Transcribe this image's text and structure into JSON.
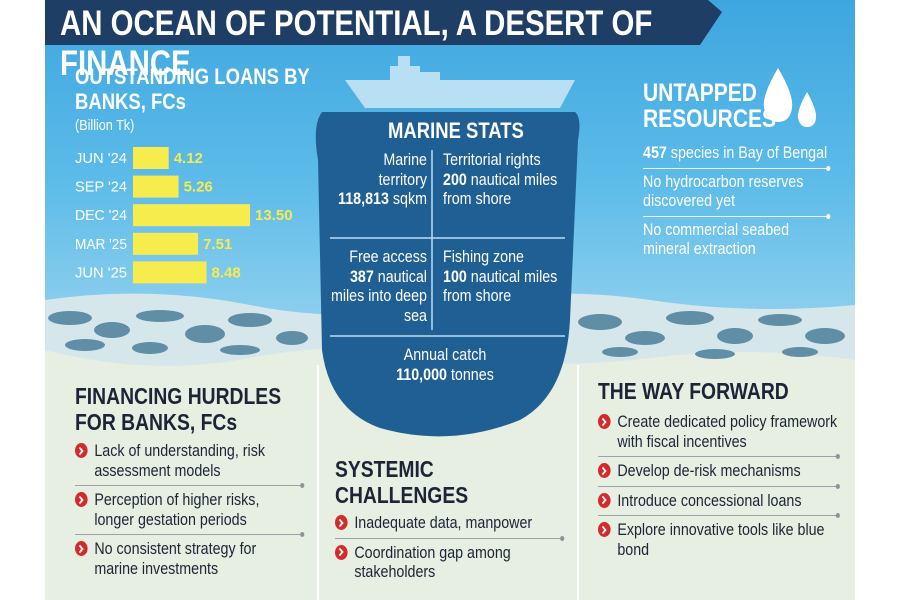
{
  "title": "AN OCEAN OF POTENTIAL, A DESERT OF FINANCE",
  "chart_data": {
    "type": "bar",
    "orientation": "horizontal",
    "title": "OUTSTANDING LOANS BY BANKS, FCs",
    "subtitle": "(Billion Tk)",
    "categories": [
      "JUN '24",
      "SEP '24",
      "DEC '24",
      "MAR '25",
      "JUN '25"
    ],
    "values": [
      4.12,
      5.26,
      13.5,
      7.51,
      8.48
    ],
    "value_labels": [
      "4.12",
      "5.26",
      "13.50",
      "7.51",
      "8.48"
    ],
    "color": "#f7ec4d"
  },
  "marine_stats": {
    "title": "MARINE STATS",
    "cells": [
      {
        "label": "Marine territory",
        "figure": "118,813",
        "rest": "sqkm"
      },
      {
        "label": "Territorial rights",
        "figure": "200",
        "rest": "nautical miles from shore"
      },
      {
        "label": "Free access",
        "figure": "387",
        "rest": "nautical miles into deep sea"
      },
      {
        "label": "Fishing zone",
        "figure": "100",
        "rest": "nautical miles from shore"
      },
      {
        "label": "Annual catch",
        "figure": "110,000",
        "rest": "tonnes"
      }
    ]
  },
  "untapped": {
    "title": "UNTAPPED RESOURCES",
    "items": [
      {
        "figure": "457",
        "text": "species in Bay of Bengal"
      },
      {
        "text": "No hydrocarbon reserves discovered yet"
      },
      {
        "text": "No commercial seabed mineral extraction"
      }
    ]
  },
  "hurdles": {
    "title": "FINANCING HURDLES FOR BANKS, FCs",
    "items": [
      "Lack of understanding, risk assessment models",
      "Perception of higher risks, longer gestation periods",
      "No consistent strategy for marine investments"
    ]
  },
  "systemic": {
    "title": "SYSTEMIC CHALLENGES",
    "items": [
      "Inadequate data, manpower",
      "Coordination gap among stakeholders"
    ]
  },
  "way_forward": {
    "title": "THE WAY FORWARD",
    "items": [
      "Create dedicated policy framework with fiscal incentives",
      "Develop de-risk mechanisms",
      "Introduce concessional loans",
      "Explore innovative tools like blue bond"
    ]
  }
}
